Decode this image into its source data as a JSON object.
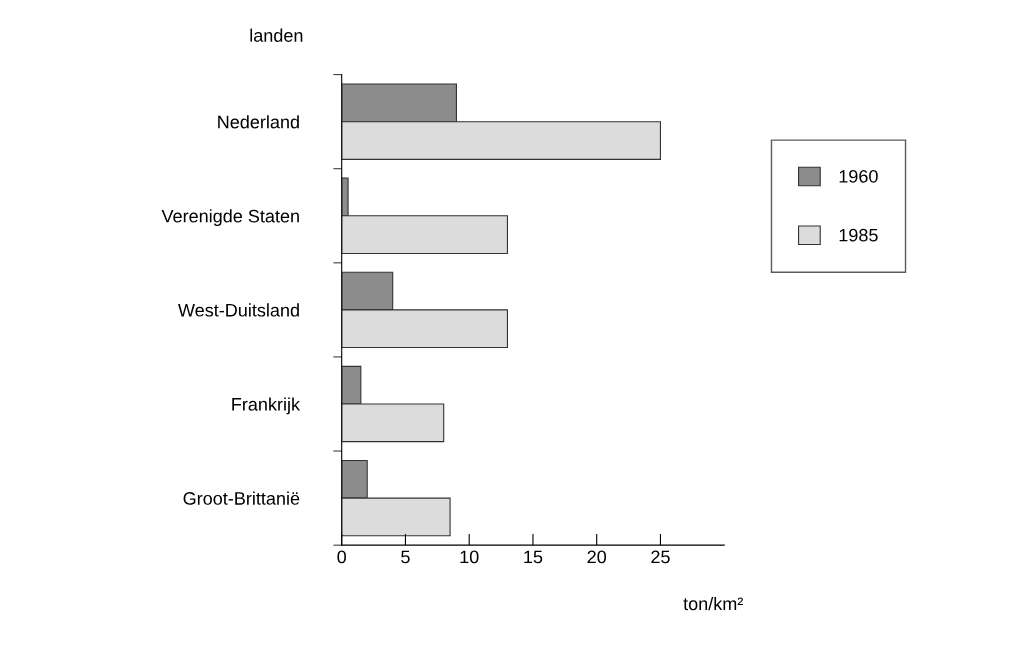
{
  "chart_data": {
    "type": "bar",
    "orientation": "horizontal",
    "ylabel": "landen",
    "xlabel": "ton/km²",
    "categories": [
      "Nederland",
      "Verenigde Staten",
      "West-Duitsland",
      "Frankrijk",
      "Groot-Brittanië"
    ],
    "series": [
      {
        "name": "1960",
        "color": "#8c8c8c",
        "values": [
          9,
          0.5,
          4,
          1.5,
          2
        ]
      },
      {
        "name": "1985",
        "color": "#dcdcdc",
        "values": [
          25,
          13,
          13,
          8,
          8.5
        ]
      }
    ],
    "xlim": [
      0,
      30
    ],
    "xticks": [
      0,
      5,
      10,
      15,
      20,
      25
    ],
    "grid": false,
    "legend": "right"
  }
}
